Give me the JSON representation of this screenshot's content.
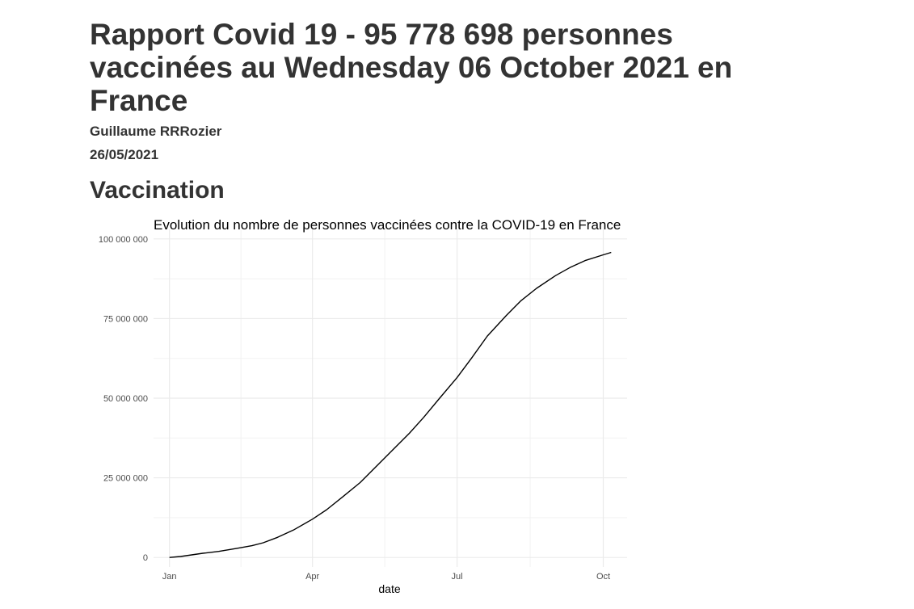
{
  "report": {
    "title": "Rapport Covid 19 - 95 778 698 personnes vaccinées au Wednesday 06 October 2021 en France",
    "author": "Guillaume RRRozier",
    "date": "26/05/2021"
  },
  "section": {
    "title": "Vaccination"
  },
  "chart_data": {
    "type": "line",
    "title": "Evolution du nombre de personnes vaccinées contre la COVID-19 en France",
    "xlabel": "date",
    "ylabel": "",
    "x_ticks": [
      "2021-01-01",
      "2021-04-01",
      "2021-07-01",
      "2021-10-01"
    ],
    "x_tick_labels": [
      "Jan",
      "Apr",
      "Jul",
      "Oct"
    ],
    "xlim": [
      "2020-12-22",
      "2021-10-16"
    ],
    "y_ticks": [
      0,
      25000000,
      50000000,
      75000000,
      100000000
    ],
    "y_tick_labels": [
      "0",
      "25 000 000",
      "50 000 000",
      "75 000 000",
      "100 000 000"
    ],
    "ylim": [
      -3000000,
      103000000
    ],
    "grid": true,
    "legend": "none",
    "series": [
      {
        "color": "#000000",
        "points": [
          [
            "2021-01-01",
            0
          ],
          [
            "2021-01-08",
            300000
          ],
          [
            "2021-01-15",
            800000
          ],
          [
            "2021-01-22",
            1300000
          ],
          [
            "2021-02-01",
            1900000
          ],
          [
            "2021-02-12",
            2800000
          ],
          [
            "2021-02-22",
            3700000
          ],
          [
            "2021-03-01",
            4600000
          ],
          [
            "2021-03-10",
            6300000
          ],
          [
            "2021-03-20",
            8600000
          ],
          [
            "2021-04-01",
            12000000
          ],
          [
            "2021-04-10",
            15000000
          ],
          [
            "2021-04-20",
            19000000
          ],
          [
            "2021-05-01",
            23500000
          ],
          [
            "2021-05-10",
            28000000
          ],
          [
            "2021-05-20",
            33000000
          ],
          [
            "2021-06-01",
            39000000
          ],
          [
            "2021-06-10",
            44000000
          ],
          [
            "2021-06-20",
            50000000
          ],
          [
            "2021-07-01",
            56500000
          ],
          [
            "2021-07-10",
            62500000
          ],
          [
            "2021-07-20",
            69500000
          ],
          [
            "2021-08-01",
            76000000
          ],
          [
            "2021-08-10",
            80500000
          ],
          [
            "2021-08-20",
            84500000
          ],
          [
            "2021-09-01",
            88500000
          ],
          [
            "2021-09-10",
            91000000
          ],
          [
            "2021-09-20",
            93300000
          ],
          [
            "2021-10-01",
            95000000
          ],
          [
            "2021-10-06",
            95778698
          ]
        ]
      }
    ]
  }
}
